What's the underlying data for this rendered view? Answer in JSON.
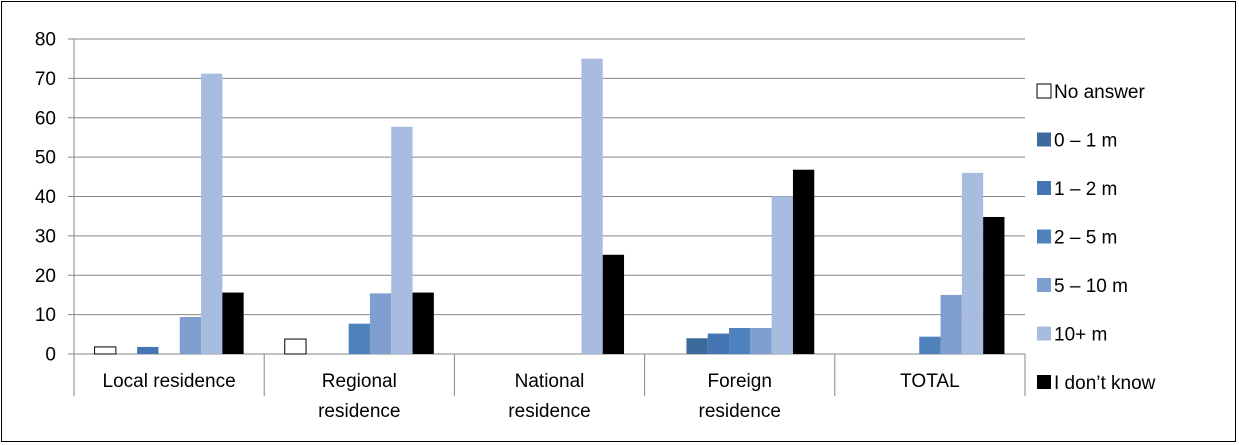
{
  "chart_data": {
    "type": "bar",
    "title": "",
    "xlabel": "",
    "ylabel": "",
    "ylim": [
      0,
      80
    ],
    "yticks": [
      0,
      10,
      20,
      30,
      40,
      50,
      60,
      70,
      80
    ],
    "grid": true,
    "legend_position": "right",
    "categories": [
      [
        "Local residence"
      ],
      [
        "Regional",
        "residence"
      ],
      [
        "National",
        "residence"
      ],
      [
        "Foreign",
        "residence"
      ],
      [
        "TOTAL"
      ]
    ],
    "series": [
      {
        "name": "No answer",
        "color": "#ffffff",
        "stroke": "#000000",
        "values": [
          1.8,
          3.8,
          0,
          0,
          0
        ]
      },
      {
        "name": "0 – 1 m",
        "color": "#3c6a9c",
        "values": [
          0,
          0,
          0,
          4.0,
          0
        ]
      },
      {
        "name": "1 – 2 m",
        "color": "#4575b5",
        "values": [
          1.8,
          0,
          0,
          5.2,
          0
        ]
      },
      {
        "name": "2 – 5 m",
        "color": "#4f81bd",
        "values": [
          0,
          7.7,
          0,
          6.6,
          4.4
        ]
      },
      {
        "name": "5 – 10 m",
        "color": "#7f9fd1",
        "values": [
          9.4,
          15.4,
          0,
          6.6,
          15.0
        ]
      },
      {
        "name": "10+ m",
        "color": "#a8bcdf",
        "values": [
          71.2,
          57.7,
          75.0,
          40.0,
          46.0
        ]
      },
      {
        "name": "I don’t know",
        "color": "#000000",
        "values": [
          15.6,
          15.6,
          25.2,
          46.8,
          34.8
        ]
      }
    ]
  }
}
